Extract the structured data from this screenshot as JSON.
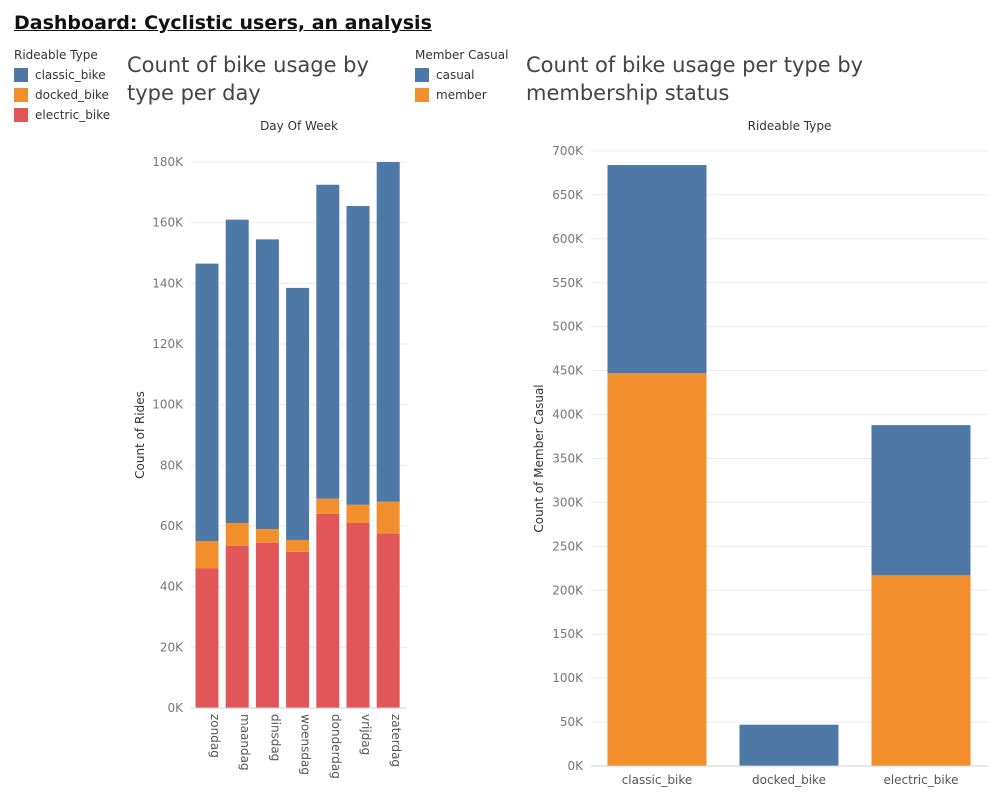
{
  "dashboard": {
    "title": "Dashboard: Cyclistic users, an analysis"
  },
  "colors": {
    "classic_bike": "#4e79a7",
    "docked_bike": "#f28e2b",
    "electric_bike": "#e15759",
    "casual": "#4e79a7",
    "member": "#f28e2b"
  },
  "legends": {
    "rideable": {
      "title": "Rideable Type",
      "items": [
        "classic_bike",
        "docked_bike",
        "electric_bike"
      ]
    },
    "member": {
      "title": "Member Casual",
      "items": [
        "casual",
        "member"
      ]
    }
  },
  "chart_data": [
    {
      "type": "bar",
      "stacked": true,
      "title": "Count of bike usage by type per day",
      "column_header": "Day Of Week",
      "ylabel": "Count of Rides",
      "ylim": [
        0,
        180000
      ],
      "yticks": [
        0,
        20000,
        40000,
        60000,
        80000,
        100000,
        120000,
        140000,
        160000,
        180000
      ],
      "ytick_labels": [
        "0K",
        "20K",
        "40K",
        "60K",
        "80K",
        "100K",
        "120K",
        "140K",
        "160K",
        "180K"
      ],
      "categories": [
        "zondag",
        "maandag",
        "dinsdag",
        "woensdag",
        "donderdag",
        "vrijdag",
        "zaterdag"
      ],
      "series": [
        {
          "name": "electric_bike",
          "values": [
            46000,
            53500,
            54500,
            51500,
            64000,
            61000,
            57500
          ]
        },
        {
          "name": "docked_bike",
          "values": [
            9000,
            7500,
            4500,
            3900,
            5000,
            6000,
            10500
          ]
        },
        {
          "name": "classic_bike",
          "values": [
            91500,
            100000,
            95500,
            83100,
            103500,
            98500,
            112000
          ]
        }
      ],
      "grid": true,
      "legend": "top-left"
    },
    {
      "type": "bar",
      "stacked": true,
      "title": "Count of bike usage per type by membership status",
      "column_header": "Rideable Type",
      "ylabel": "Count of Member Casual",
      "ylim": [
        0,
        700000
      ],
      "yticks": [
        0,
        50000,
        100000,
        150000,
        200000,
        250000,
        300000,
        350000,
        400000,
        450000,
        500000,
        550000,
        600000,
        650000,
        700000
      ],
      "ytick_labels": [
        "0K",
        "50K",
        "100K",
        "150K",
        "200K",
        "250K",
        "300K",
        "350K",
        "400K",
        "450K",
        "500K",
        "550K",
        "600K",
        "650K",
        "700K"
      ],
      "categories": [
        "classic_bike",
        "docked_bike",
        "electric_bike"
      ],
      "series": [
        {
          "name": "member",
          "values": [
            447000,
            0,
            217000
          ]
        },
        {
          "name": "casual",
          "values": [
            237000,
            47000,
            171000
          ]
        }
      ],
      "grid": true,
      "legend": "top-center"
    }
  ]
}
